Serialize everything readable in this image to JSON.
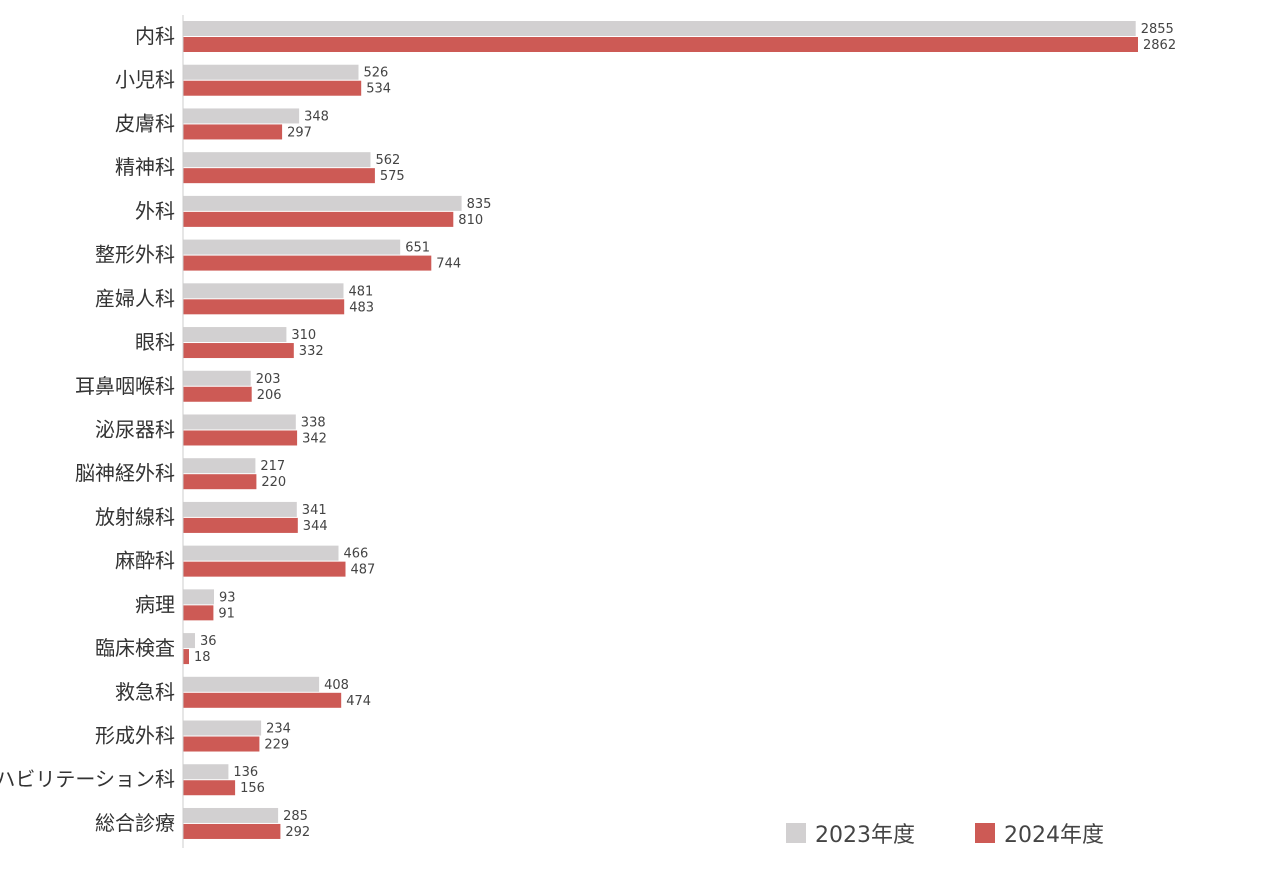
{
  "colors": {
    "series_2023": "#d2d0d1",
    "series_2024": "#cd5a55",
    "axis": "#cccccc"
  },
  "chart_data": {
    "type": "bar",
    "orientation": "horizontal",
    "categories": [
      "内科",
      "小児科",
      "皮膚科",
      "精神科",
      "外科",
      "整形外科",
      "産婦人科",
      "眼科",
      "耳鼻咽喉科",
      "泌尿器科",
      "脳神経外科",
      "放射線科",
      "麻酔科",
      "病理",
      "臨床検査",
      "救急科",
      "形成外科",
      "リハビリテーション科",
      "総合診療"
    ],
    "series": [
      {
        "name": "2023年度",
        "values": [
          2855,
          526,
          348,
          562,
          835,
          651,
          481,
          310,
          203,
          338,
          217,
          341,
          466,
          93,
          36,
          408,
          234,
          136,
          285
        ]
      },
      {
        "name": "2024年度",
        "values": [
          2862,
          534,
          297,
          575,
          810,
          744,
          483,
          332,
          206,
          342,
          220,
          344,
          487,
          91,
          18,
          474,
          229,
          156,
          292
        ]
      }
    ],
    "xlim": [
      0,
      2862
    ],
    "grid": false,
    "legend_position": "bottom-right"
  }
}
